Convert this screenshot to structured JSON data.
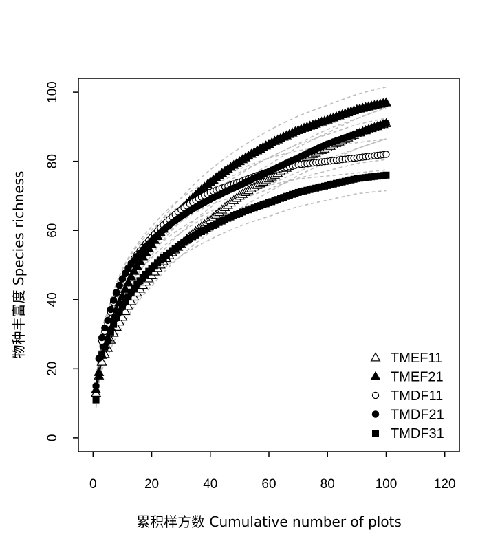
{
  "chart_data": {
    "type": "line",
    "title": "",
    "xlabel": "累积样方数 Cumulative number of plots",
    "ylabel": "物种丰富度 Species richness",
    "xlim": [
      -5,
      125
    ],
    "ylim": [
      -4,
      104
    ],
    "xticks": [
      0,
      20,
      40,
      60,
      80,
      100,
      120
    ],
    "yticks": [
      0,
      20,
      40,
      60,
      80,
      100
    ],
    "grid": false,
    "legend_position": "bottom-right",
    "series": [
      {
        "name": "TMEF11",
        "marker": "open-triangle",
        "x": [
          1,
          2,
          3,
          5,
          10,
          20,
          30,
          40,
          50,
          60,
          70,
          80,
          90,
          100
        ],
        "y": [
          13,
          18,
          22,
          26,
          35,
          47,
          56,
          63,
          70,
          75,
          80,
          84,
          88,
          91
        ]
      },
      {
        "name": "TMEF21",
        "marker": "filled-triangle",
        "x": [
          1,
          2,
          3,
          5,
          10,
          20,
          30,
          40,
          50,
          60,
          70,
          80,
          90,
          100
        ],
        "y": [
          14,
          19,
          24,
          29,
          41,
          56,
          66,
          74,
          80,
          85,
          89,
          92,
          95,
          97
        ]
      },
      {
        "name": "TMDF11",
        "marker": "open-circle",
        "x": [
          1,
          2,
          3,
          5,
          10,
          20,
          30,
          40,
          50,
          60,
          70,
          80,
          90,
          100
        ],
        "y": [
          15,
          23,
          28,
          33,
          46,
          58,
          66,
          71,
          74,
          77,
          79,
          80,
          81,
          82
        ]
      },
      {
        "name": "TMDF21",
        "marker": "filled-circle",
        "x": [
          1,
          2,
          3,
          5,
          10,
          20,
          30,
          40,
          50,
          60,
          70,
          80,
          90,
          100
        ],
        "y": [
          15,
          23,
          29,
          34,
          46,
          57,
          64,
          69,
          73,
          77,
          81,
          85,
          88,
          91
        ]
      },
      {
        "name": "TMDF31",
        "marker": "filled-square",
        "x": [
          1,
          2,
          3,
          5,
          10,
          20,
          30,
          40,
          50,
          60,
          70,
          80,
          90,
          100
        ],
        "y": [
          11,
          18,
          24,
          28,
          38,
          49,
          56,
          61,
          65,
          68,
          71,
          73,
          75,
          76
        ]
      }
    ]
  }
}
